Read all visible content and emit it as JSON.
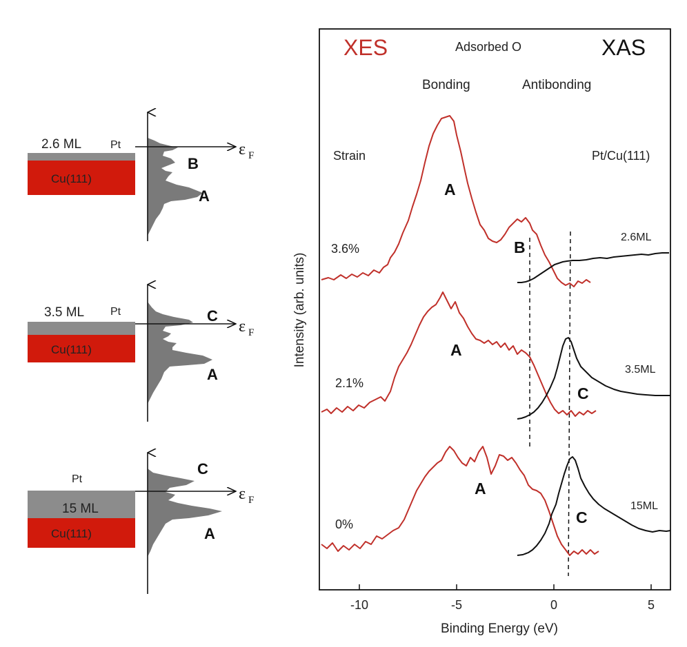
{
  "left_panels": [
    {
      "thickness": "2.6 ML",
      "overlayer": "Pt",
      "substrate": "Cu(111)",
      "peaks": [
        "B",
        "A"
      ],
      "fermi_symbol": "ε",
      "fermi_sub": "F"
    },
    {
      "thickness": "3.5 ML",
      "overlayer": "Pt",
      "substrate": "Cu(111)",
      "peaks": [
        "C",
        "A"
      ],
      "fermi_symbol": "ε",
      "fermi_sub": "F"
    },
    {
      "thickness": "15 ML",
      "overlayer": "Pt",
      "substrate": "Cu(111)",
      "peaks": [
        "C",
        "A"
      ],
      "fermi_symbol": "ε",
      "fermi_sub": "F"
    }
  ],
  "plot": {
    "xes_label": "XES",
    "xas_label": "XAS",
    "adsorbate": "Adsorbed O",
    "bonding": "Bonding",
    "antibonding": "Antibonding",
    "strain_header": "Strain",
    "system_header": "Pt/Cu(111)",
    "ylabel": "Intensity (arb. units)",
    "xlabel": "Binding Energy (eV)",
    "xticks": [
      "-10",
      "-5",
      "0",
      "5"
    ],
    "xes_color": "#c0302a",
    "xas_color": "#111111",
    "rows": [
      {
        "strain": "3.6%",
        "coverage": "2.6ML",
        "xes_peaks": [
          "A",
          "B"
        ],
        "xas_peaks": []
      },
      {
        "strain": "2.1%",
        "coverage": "3.5ML",
        "xes_peaks": [
          "A"
        ],
        "xas_peaks": [
          "C"
        ]
      },
      {
        "strain": "0%",
        "coverage": "15ML",
        "xes_peaks": [
          "A"
        ],
        "xas_peaks": [
          "C"
        ]
      }
    ]
  },
  "colors": {
    "cu": "#d11a0c",
    "pt": "#8c8c8c",
    "dos_fill": "#7a7a7a"
  }
}
